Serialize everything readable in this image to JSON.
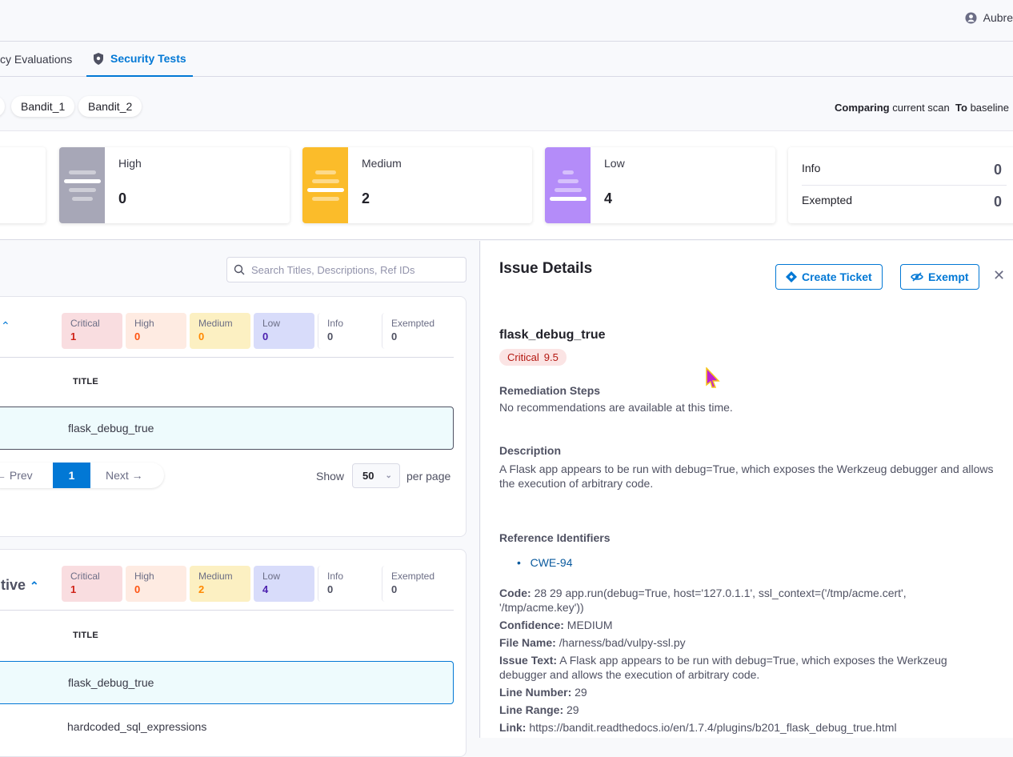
{
  "topbar": {
    "user": "Aubre",
    "user_icon": "user-circle-icon"
  },
  "tabs": [
    {
      "label": "cy Evaluations"
    },
    {
      "label": "Security Tests",
      "icon": "shield-icon",
      "active": true
    }
  ],
  "filters": {
    "pills": [
      "Bandit_1",
      "Bandit_2"
    ],
    "compare_bold1": "Comparing",
    "compare_text1": "current scan",
    "compare_bold2": "To",
    "compare_text2": "baseline"
  },
  "summary": {
    "high": {
      "label": "High",
      "value": "0",
      "color": "#a7a7b7"
    },
    "medium": {
      "label": "Medium",
      "value": "2",
      "color": "#fbbc2a"
    },
    "low": {
      "label": "Low",
      "value": "4",
      "color": "#b48cf9"
    },
    "info": {
      "label": "Info",
      "value": "0"
    },
    "exempted": {
      "label": "Exempted",
      "value": "0"
    }
  },
  "search": {
    "placeholder": "Search Titles, Descriptions, Ref IDs"
  },
  "section1": {
    "counts": [
      {
        "label": "Critical",
        "value": "1"
      },
      {
        "label": "High",
        "value": "0"
      },
      {
        "label": "Medium",
        "value": "0"
      },
      {
        "label": "Low",
        "value": "0"
      },
      {
        "label": "Info",
        "value": "0"
      },
      {
        "label": "Exempted",
        "value": "0"
      }
    ],
    "column": "TITLE",
    "rows": [
      "flask_debug_true"
    ],
    "pagination": {
      "prev": "Prev",
      "page": "1",
      "next": "Next",
      "show": "Show",
      "per_page_value": "50",
      "per_page": "per page"
    }
  },
  "section2": {
    "title": "tive",
    "counts": [
      {
        "label": "Critical",
        "value": "1"
      },
      {
        "label": "High",
        "value": "0"
      },
      {
        "label": "Medium",
        "value": "2"
      },
      {
        "label": "Low",
        "value": "4"
      },
      {
        "label": "Info",
        "value": "0"
      },
      {
        "label": "Exempted",
        "value": "0"
      }
    ],
    "column": "TITLE",
    "rows": [
      "flask_debug_true",
      "hardcoded_sql_expressions"
    ]
  },
  "details": {
    "title": "Issue Details",
    "create_ticket": "Create Ticket",
    "exempt": "Exempt",
    "issue_name": "flask_debug_true",
    "severity": "Critical",
    "score": "9.5",
    "remediation_label": "Remediation Steps",
    "remediation": "No recommendations are available at this time.",
    "description_label": "Description",
    "description": "A Flask app appears to be run with debug=True, which exposes the Werkzeug debugger and allows the execution of arbitrary code.",
    "ref_label": "Reference Identifiers",
    "refs": [
      "CWE-94"
    ],
    "fields": [
      {
        "k": "Code:",
        "v": "28 29 app.run(debug=True, host='127.0.1.1', ssl_context=('/tmp/acme.cert', '/tmp/acme.key'))"
      },
      {
        "k": "Confidence:",
        "v": "MEDIUM"
      },
      {
        "k": "File Name:",
        "v": "/harness/bad/vulpy-ssl.py"
      },
      {
        "k": "Issue Text:",
        "v": "A Flask app appears to be run with debug=True, which exposes the Werkzeug debugger and allows the execution of arbitrary code."
      },
      {
        "k": "Line Number:",
        "v": "29"
      },
      {
        "k": "Line Range:",
        "v": "29"
      },
      {
        "k": "Link:",
        "v": "https://bandit.readthedocs.io/en/1.7.4/plugins/b201_flask_debug_true.html"
      }
    ]
  }
}
